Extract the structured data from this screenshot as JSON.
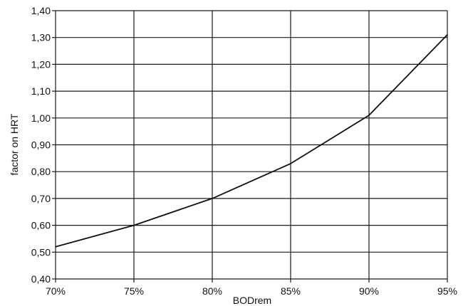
{
  "chart_data": {
    "type": "line",
    "x_ticks": [
      "70%",
      "75%",
      "80%",
      "85%",
      "90%",
      "95%"
    ],
    "y_ticks": [
      "0,40",
      "0,50",
      "0,60",
      "0,70",
      "0,80",
      "0,90",
      "1,00",
      "1,10",
      "1,20",
      "1,30",
      "1,40"
    ],
    "xlabel": "BODrem",
    "ylabel": "factor on HRT",
    "xlim": [
      70,
      95
    ],
    "ylim": [
      0.4,
      1.4
    ],
    "grid": true,
    "series": [
      {
        "x": [
          70,
          75,
          80,
          85,
          90,
          95
        ],
        "y": [
          0.52,
          0.6,
          0.7,
          0.83,
          1.01,
          1.31
        ],
        "color": "#111111"
      }
    ]
  }
}
